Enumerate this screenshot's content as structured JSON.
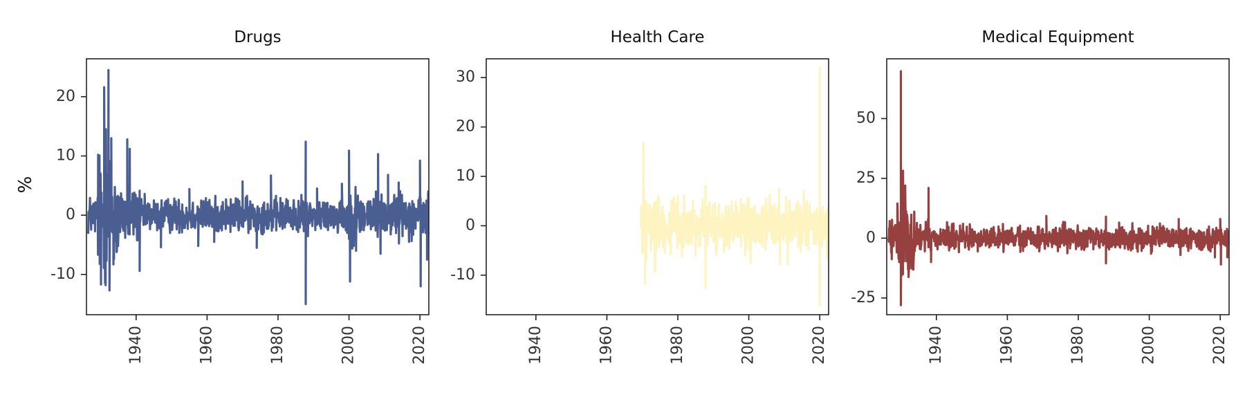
{
  "figure": {
    "ylabel": "%",
    "x_ticks": [
      1940,
      1960,
      1980,
      2000,
      2020
    ]
  },
  "chart_data": [
    {
      "type": "line",
      "title": "Drugs",
      "color": "#4b5e91",
      "xlim": [
        1926.0,
        2022.5
      ],
      "ylim": [
        -16.8,
        26.4
      ],
      "y_ticks": [
        20,
        10,
        0,
        -10
      ],
      "series": [
        {
          "x_range": [
            1926.5,
            2022.5
          ],
          "noise_bands": [
            {
              "from": 1926,
              "to": 1929,
              "amp": 2.2
            },
            {
              "from": 1929,
              "to": 1935,
              "amp": 6.5
            },
            {
              "from": 1935,
              "to": 1941,
              "amp": 3.0
            },
            {
              "from": 1941,
              "to": 1999,
              "amp": 1.8
            },
            {
              "from": 1999,
              "to": 2003,
              "amp": 2.8
            },
            {
              "from": 2003,
              "to": 2022.6,
              "amp": 2.3
            }
          ],
          "spikes": [
            [
              1929.3,
              10.2
            ],
            [
              1931.0,
              21.6
            ],
            [
              1931.5,
              14.5
            ],
            [
              1932.2,
              24.5
            ],
            [
              1932.5,
              -12.7
            ],
            [
              1930.1,
              -11.7
            ],
            [
              1931.4,
              -11.8
            ],
            [
              1933.0,
              13.0
            ],
            [
              1933.6,
              -8.3
            ],
            [
              1937.5,
              12.8
            ],
            [
              1938.2,
              11.2
            ],
            [
              1941.0,
              -9.4
            ],
            [
              1947.0,
              -5.4
            ],
            [
              1955.0,
              4.4
            ],
            [
              1957.5,
              -5.2
            ],
            [
              1962.0,
              -4.5
            ],
            [
              1970.0,
              5.7
            ],
            [
              1974.0,
              -5.5
            ],
            [
              1978.0,
              6.7
            ],
            [
              1987.8,
              12.4
            ],
            [
              1987.8,
              -15.0
            ],
            [
              1991.0,
              4.5
            ],
            [
              1998.0,
              5.3
            ],
            [
              2000.0,
              10.9
            ],
            [
              2000.3,
              -11.2
            ],
            [
              2002.0,
              -6.0
            ],
            [
              2008.2,
              10.3
            ],
            [
              2008.9,
              -6.5
            ],
            [
              2011.0,
              6.8
            ],
            [
              2014.0,
              5.5
            ],
            [
              2020.0,
              9.2
            ],
            [
              2020.2,
              -12.0
            ],
            [
              2022.0,
              -7.5
            ]
          ]
        }
      ]
    },
    {
      "type": "line",
      "title": "Health Care",
      "color": "#fdf4c1",
      "xlim": [
        1926.0,
        2022.5
      ],
      "ylim": [
        -18.0,
        33.8
      ],
      "y_ticks": [
        30,
        20,
        10,
        0,
        -10
      ],
      "series": [
        {
          "x_range": [
            1969.5,
            2022.5
          ],
          "noise_bands": [
            {
              "from": 1969,
              "to": 1975,
              "amp": 4.2
            },
            {
              "from": 1975,
              "to": 2022.6,
              "amp": 3.0
            }
          ],
          "spikes": [
            [
              1970.3,
              16.7
            ],
            [
              1970.8,
              -11.7
            ],
            [
              1973.5,
              -9.3
            ],
            [
              1978.0,
              -5.8
            ],
            [
              1985.0,
              -6.0
            ],
            [
              1987.8,
              8.1
            ],
            [
              1987.8,
              -12.7
            ],
            [
              1999.0,
              -6.0
            ],
            [
              2000.5,
              -7.5
            ],
            [
              2008.5,
              7.5
            ],
            [
              2008.8,
              -7.8
            ],
            [
              2011.0,
              -7.8
            ],
            [
              2015.5,
              7.0
            ],
            [
              2020.0,
              32.0
            ],
            [
              2020.0,
              -16.2
            ],
            [
              2022.0,
              -6.5
            ]
          ]
        }
      ]
    },
    {
      "type": "line",
      "title": "Medical Equipment",
      "color": "#974040",
      "xlim": [
        1926.0,
        2022.5
      ],
      "ylim": [
        -32.0,
        75.0
      ],
      "y_ticks": [
        50,
        25,
        0,
        -25
      ],
      "series": [
        {
          "x_range": [
            1926.5,
            2022.5
          ],
          "noise_bands": [
            {
              "from": 1926,
              "to": 1929,
              "amp": 4.5
            },
            {
              "from": 1929,
              "to": 1934,
              "amp": 10.0
            },
            {
              "from": 1934,
              "to": 1945,
              "amp": 4.0
            },
            {
              "from": 1945,
              "to": 2022.6,
              "amp": 3.0
            }
          ],
          "spikes": [
            [
              1929.0,
              14.5
            ],
            [
              1929.5,
              -10.0
            ],
            [
              1930.0,
              69.8
            ],
            [
              1930.0,
              -28.0
            ],
            [
              1930.6,
              28.2
            ],
            [
              1931.2,
              22.0
            ],
            [
              1932.0,
              -13.0
            ],
            [
              1937.8,
              21.0
            ],
            [
              1938.5,
              -10.0
            ],
            [
              1971.0,
              9.3
            ],
            [
              1987.8,
              9.0
            ],
            [
              1987.8,
              -10.5
            ],
            [
              1991.5,
              6.5
            ],
            [
              2000.5,
              -6.5
            ],
            [
              2008.3,
              8.0
            ],
            [
              2008.8,
              -7.0
            ],
            [
              2018.5,
              -8.0
            ],
            [
              2020.0,
              8.0
            ],
            [
              2020.2,
              -11.0
            ],
            [
              2022.0,
              -8.0
            ]
          ]
        }
      ]
    }
  ]
}
